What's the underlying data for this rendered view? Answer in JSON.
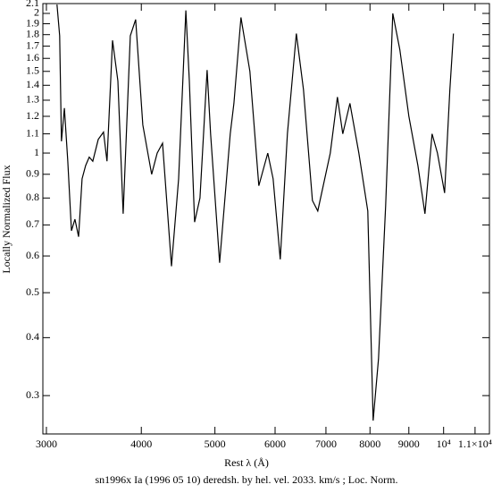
{
  "chart_data": {
    "type": "line",
    "title": "sn1996x Ia (1996 05 10) deredsh. by hel. vel.  2033. km/s ;  Loc. Norm.",
    "x_label": "Rest λ (Å)",
    "y_label": "Locally Normalized Flux",
    "x_scale": "log",
    "y_scale": "log",
    "grid": false,
    "color": "#000000",
    "x": [
      3098,
      3123,
      3140,
      3168,
      3201,
      3237,
      3271,
      3307,
      3343,
      3379,
      3416,
      3453,
      3510,
      3567,
      3605,
      3666,
      3726,
      3786,
      3869,
      3932,
      4018,
      4127,
      4197,
      4266,
      4383,
      4479,
      4578,
      4627,
      4701,
      4778,
      4883,
      4935,
      5071,
      5237,
      5296,
      5411,
      5559,
      5711,
      5868,
      5964,
      6095,
      6228,
      6399,
      6539,
      6719,
      6829,
      7092,
      7247,
      7366,
      7527,
      7735,
      7947,
      8077,
      8209,
      8388,
      8572,
      8757,
      9000,
      9249,
      9451,
      9657,
      9814,
      10030,
      10192,
      10303
    ],
    "values": [
      2.09,
      1.79,
      1.06,
      1.25,
      0.96,
      0.68,
      0.72,
      0.66,
      0.88,
      0.94,
      0.98,
      0.96,
      1.07,
      1.11,
      0.96,
      1.75,
      1.43,
      0.74,
      1.79,
      1.94,
      1.15,
      0.9,
      1.0,
      1.05,
      0.57,
      0.88,
      2.03,
      1.43,
      0.71,
      0.8,
      1.51,
      1.1,
      0.58,
      1.1,
      1.28,
      1.96,
      1.5,
      0.85,
      1.0,
      0.88,
      0.59,
      1.1,
      1.81,
      1.37,
      0.79,
      0.75,
      1.0,
      1.32,
      1.1,
      1.28,
      1.0,
      0.75,
      0.265,
      0.36,
      0.77,
      2.0,
      1.67,
      1.2,
      0.94,
      0.74,
      1.1,
      1.0,
      0.82,
      1.37,
      1.81
    ],
    "xlim": [
      2968,
      11490
    ],
    "ylim": [
      0.248,
      2.1
    ],
    "xticks": [
      3000,
      4000,
      5000,
      6000,
      7000,
      8000,
      9000,
      {
        "value": 10000,
        "label": "10⁴"
      },
      {
        "value": 11000,
        "label": "1.1×10⁴"
      }
    ],
    "yticks": [
      0.3,
      0.4,
      0.5,
      0.6,
      0.7,
      0.8,
      0.9,
      1,
      1.1,
      1.2,
      1.3,
      1.4,
      1.5,
      1.6,
      1.7,
      1.8,
      1.9,
      2,
      2.1
    ]
  }
}
